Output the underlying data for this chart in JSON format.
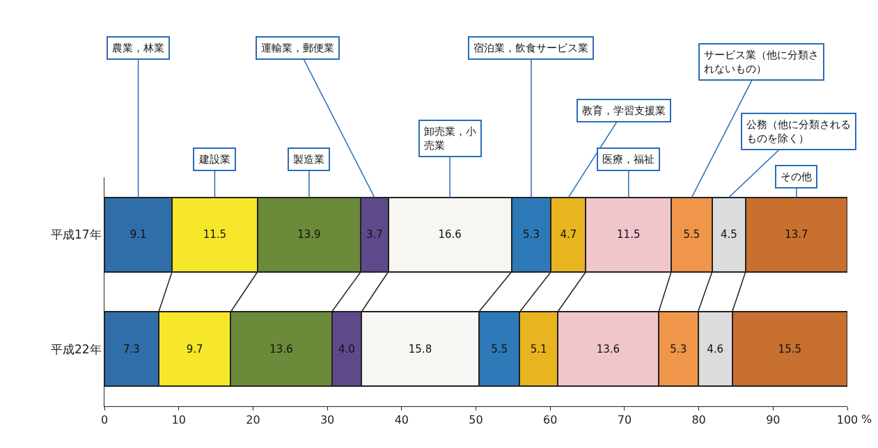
{
  "chart_data": {
    "type": "bar",
    "orientation": "horizontal",
    "stacked": true,
    "xlabel": "%",
    "categories": [
      "平成17年",
      "平成22年"
    ],
    "series": [
      {
        "name": "農業，林業",
        "color": "#2f6ea8",
        "values": [
          9.1,
          7.3
        ],
        "value_labels": [
          "9.1",
          "7.3"
        ]
      },
      {
        "name": "建設業",
        "color": "#f6e72a",
        "values": [
          11.5,
          9.7
        ],
        "value_labels": [
          "11.5",
          "9.7"
        ]
      },
      {
        "name": "製造業",
        "color": "#6b8a3a",
        "values": [
          13.9,
          13.6
        ],
        "value_labels": [
          "13.9",
          "13.6"
        ]
      },
      {
        "name": "運輸業，郵便業",
        "color": "#5e4a8a",
        "values": [
          3.7,
          4.0
        ],
        "value_labels": [
          "3.7",
          "4.0"
        ]
      },
      {
        "name": "卸売業，小売業",
        "color": "#f8f6f2",
        "values": [
          16.6,
          15.8
        ],
        "value_labels": [
          "16.6",
          "15.8"
        ]
      },
      {
        "name": "宿泊業，飲食サービス業",
        "color": "#2e7ab8",
        "values": [
          5.3,
          5.5
        ],
        "value_labels": [
          "5.3",
          "5.5"
        ]
      },
      {
        "name": "教育，学習支援業",
        "color": "#e8b420",
        "values": [
          4.7,
          5.1
        ],
        "value_labels": [
          "4.7",
          "5.1"
        ]
      },
      {
        "name": "医療，福祉",
        "color": "#f0c6cc",
        "values": [
          11.5,
          13.6
        ],
        "value_labels": [
          "11.5",
          "13.6"
        ]
      },
      {
        "name": "サービス業（他に分類されないもの）",
        "color": "#f0964a",
        "values": [
          5.5,
          5.3
        ],
        "value_labels": [
          "5.5",
          "5.3"
        ]
      },
      {
        "name": "公務（他に分類されるものを除く）",
        "color": "#dcdcdc",
        "values": [
          4.5,
          4.6
        ],
        "value_labels": [
          "4.5",
          "4.6"
        ]
      },
      {
        "name": "その他",
        "color": "#c87030",
        "values": [
          13.7,
          15.5
        ],
        "value_labels": [
          "13.7",
          "15.5"
        ]
      }
    ],
    "xlim": [
      0,
      100
    ],
    "xticks": [
      0,
      10,
      20,
      30,
      40,
      50,
      60,
      70,
      80,
      90,
      100
    ],
    "legend": false
  }
}
